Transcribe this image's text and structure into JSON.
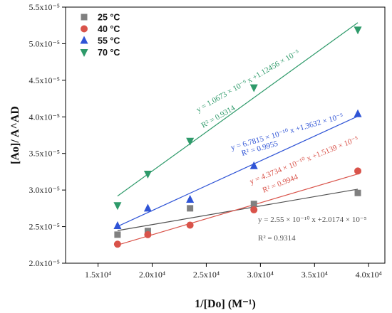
{
  "chart_data": {
    "type": "scatter",
    "xlabel": "1/[Do] (M⁻¹)",
    "ylabel": "[Ao]/ A^AD",
    "xlim": [
      12000,
      41500
    ],
    "ylim": [
      2e-05,
      5.5e-05
    ],
    "x_ticks": [
      15000,
      20000,
      25000,
      30000,
      35000,
      40000
    ],
    "x_tick_labels": [
      "1.5x10⁴",
      "2.0x10⁴",
      "2.5x10⁴",
      "3.0x10⁴",
      "3.5x10⁴",
      "4.0x10⁴"
    ],
    "y_ticks": [
      2e-05,
      2.5e-05,
      3e-05,
      3.5e-05,
      4e-05,
      4.5e-05,
      5e-05,
      5.5e-05
    ],
    "y_tick_labels": [
      "2.0x10⁻⁵",
      "2.5x10⁻⁵",
      "3.0x10⁻⁵",
      "3.5x10⁻⁵",
      "4.0x10⁻⁵",
      "4.5x10⁻⁵",
      "5.0x10⁻⁵",
      "5.5x10⁻⁵"
    ],
    "legend_position": "top-left",
    "grid": false,
    "series": [
      {
        "name": "25 °C",
        "marker": "square",
        "color": "#808080",
        "line_color": "#505050",
        "x": [
          16800,
          19600,
          23500,
          29400,
          39000
        ],
        "y": [
          2.39e-05,
          2.44e-05,
          2.75e-05,
          2.81e-05,
          2.96e-05
        ],
        "slope": 2.55e-10,
        "intercept": 2.0174e-05,
        "equation": "y = 2.55 × 10⁻¹⁰ x +2.0174 × 10⁻⁵",
        "r2": "R² = 0.9314"
      },
      {
        "name": "40 °C",
        "marker": "circle",
        "color": "#d9534a",
        "line_color": "#d9534a",
        "x": [
          16800,
          19600,
          23500,
          29400,
          39000
        ],
        "y": [
          2.26e-05,
          2.39e-05,
          2.52e-05,
          2.73e-05,
          3.26e-05
        ],
        "slope": 4.3734e-10,
        "intercept": 1.5139e-05,
        "equation": "y = 4.3734 × 10⁻¹⁰ x +1.5139 × 10⁻⁵",
        "r2": "R² = 0.9944"
      },
      {
        "name": "55 °C",
        "marker": "triangle-up",
        "color": "#2f54d6",
        "line_color": "#2f54d6",
        "x": [
          16800,
          19600,
          23500,
          29400,
          39000
        ],
        "y": [
          2.51e-05,
          2.75e-05,
          2.87e-05,
          3.33e-05,
          4.04e-05
        ],
        "slope": 6.7815e-10,
        "intercept": 1.3632e-05,
        "equation": "y = 6.7815 × 10⁻¹⁰ x +1.3632 × 10⁻⁵",
        "r2": "R² = 0.9955"
      },
      {
        "name": "70 °C",
        "marker": "triangle-down",
        "color": "#2e9a6a",
        "line_color": "#2e9a6a",
        "x": [
          16800,
          19600,
          23500,
          29400,
          39000
        ],
        "y": [
          2.79e-05,
          3.22e-05,
          3.67e-05,
          4.4e-05,
          5.19e-05
        ],
        "slope": 1.0673e-09,
        "intercept": 1.12456e-05,
        "equation": "y = 1.0673 × 10⁻⁹ x +1.12456 × 10⁻⁵",
        "r2": "R² = 0.9314"
      }
    ]
  }
}
